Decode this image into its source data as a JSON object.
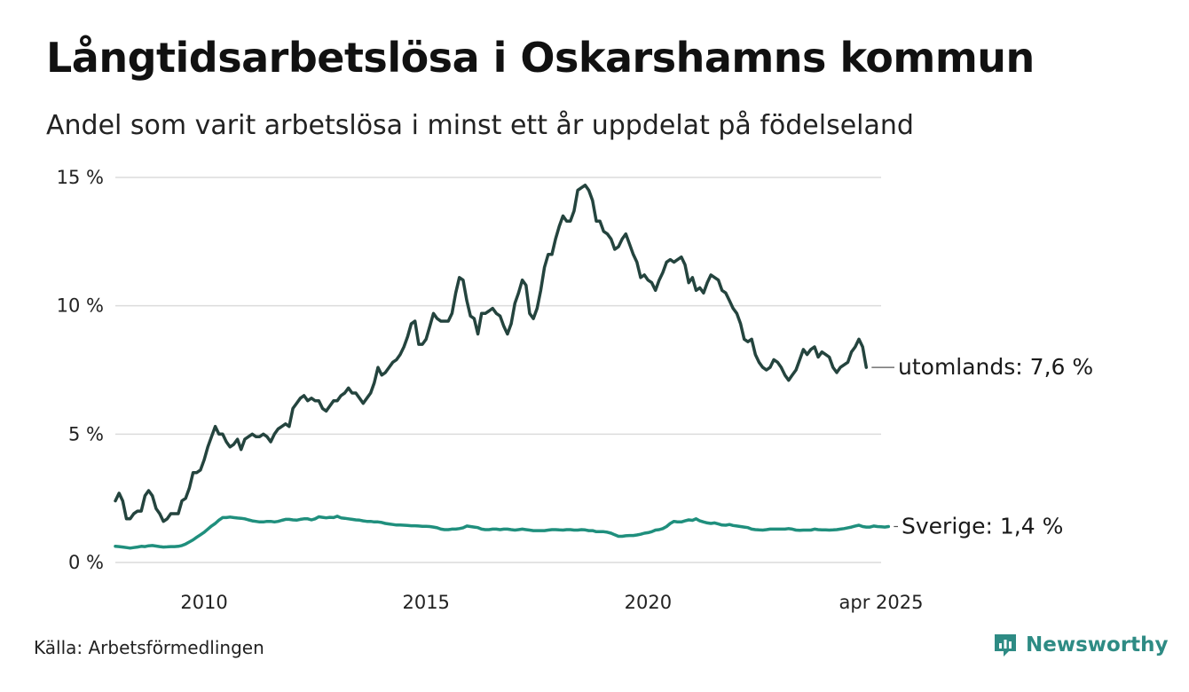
{
  "header": {
    "title": "Långtidsarbetslösa i Oskarshamns kommun",
    "subtitle": "Andel som varit arbetslösa i minst ett år uppdelat på födelseland"
  },
  "footer": {
    "source": "Källa: Arbetsförmedlingen",
    "brand": "Newsworthy",
    "brand_icon": "newsworthy-logo-icon",
    "brand_color": "#2e8b84"
  },
  "chart_data": {
    "type": "line",
    "title": "Långtidsarbetslösa i Oskarshamns kommun",
    "subtitle": "Andel som varit arbetslösa i minst ett år uppdelat på födelseland",
    "xlabel": "",
    "ylabel": "",
    "x_start": "2008-01",
    "x_end": "2025-04",
    "x_step": "month",
    "xlim": [
      "2008-01",
      "2025-04"
    ],
    "ylim": [
      0,
      15
    ],
    "yticks": [
      0,
      5,
      10,
      15
    ],
    "ytick_labels": [
      "0 %",
      "5 %",
      "10 %",
      "15 %"
    ],
    "xticks": [
      "2010-01",
      "2015-01",
      "2020-01",
      "2025-04"
    ],
    "xtick_labels": [
      "2010",
      "2015",
      "2020",
      "apr 2025"
    ],
    "grid": "horizontal",
    "legend": "end-of-line labels",
    "series": [
      {
        "name": "utomlands",
        "end_label": "utomlands: 7,6 %",
        "color": "#24443e",
        "values": [
          2.4,
          2.7,
          2.4,
          1.7,
          1.7,
          1.9,
          2.0,
          2.0,
          2.6,
          2.8,
          2.6,
          2.1,
          1.9,
          1.6,
          1.7,
          1.9,
          1.9,
          1.9,
          2.4,
          2.5,
          2.9,
          3.5,
          3.5,
          3.6,
          4.0,
          4.5,
          4.9,
          5.3,
          5.0,
          5.0,
          4.7,
          4.5,
          4.6,
          4.8,
          4.4,
          4.8,
          4.9,
          5.0,
          4.9,
          4.9,
          5.0,
          4.9,
          4.7,
          5.0,
          5.2,
          5.3,
          5.4,
          5.3,
          6.0,
          6.2,
          6.4,
          6.5,
          6.3,
          6.4,
          6.3,
          6.3,
          6.0,
          5.9,
          6.1,
          6.3,
          6.3,
          6.5,
          6.6,
          6.8,
          6.6,
          6.6,
          6.4,
          6.2,
          6.4,
          6.6,
          7.0,
          7.6,
          7.3,
          7.4,
          7.6,
          7.8,
          7.9,
          8.1,
          8.4,
          8.8,
          9.3,
          9.4,
          8.5,
          8.5,
          8.7,
          9.2,
          9.7,
          9.5,
          9.4,
          9.4,
          9.4,
          9.7,
          10.5,
          11.1,
          11.0,
          10.2,
          9.6,
          9.5,
          8.9,
          9.7,
          9.7,
          9.8,
          9.9,
          9.7,
          9.6,
          9.2,
          8.9,
          9.3,
          10.1,
          10.5,
          11.0,
          10.8,
          9.7,
          9.5,
          9.9,
          10.6,
          11.5,
          12.0,
          12.0,
          12.6,
          13.1,
          13.5,
          13.3,
          13.3,
          13.7,
          14.5,
          14.6,
          14.7,
          14.5,
          14.1,
          13.3,
          13.3,
          12.9,
          12.8,
          12.6,
          12.2,
          12.3,
          12.6,
          12.8,
          12.4,
          12.0,
          11.7,
          11.1,
          11.2,
          11.0,
          10.9,
          10.6,
          11.0,
          11.3,
          11.7,
          11.8,
          11.7,
          11.8,
          11.9,
          11.6,
          10.9,
          11.1,
          10.6,
          10.7,
          10.5,
          10.9,
          11.2,
          11.1,
          11.0,
          10.6,
          10.5,
          10.2,
          9.9,
          9.7,
          9.3,
          8.7,
          8.6,
          8.7,
          8.1,
          7.8,
          7.6,
          7.5,
          7.6,
          7.9,
          7.8,
          7.6,
          7.3,
          7.1,
          7.3,
          7.5,
          7.9,
          8.3,
          8.1,
          8.3,
          8.4,
          8.0,
          8.2,
          8.1,
          8.0,
          7.6,
          7.4,
          7.6,
          7.7,
          7.8,
          8.2,
          8.4,
          8.7,
          8.4,
          7.6
        ]
      },
      {
        "name": "Sverige",
        "end_label": "Sverige: 1,4 %",
        "color": "#1f8f7d",
        "values": [
          0.63,
          0.62,
          0.6,
          0.58,
          0.56,
          0.58,
          0.6,
          0.63,
          0.62,
          0.65,
          0.66,
          0.64,
          0.62,
          0.6,
          0.61,
          0.62,
          0.62,
          0.63,
          0.66,
          0.72,
          0.8,
          0.88,
          0.98,
          1.08,
          1.18,
          1.3,
          1.42,
          1.52,
          1.65,
          1.75,
          1.75,
          1.77,
          1.75,
          1.73,
          1.72,
          1.7,
          1.66,
          1.62,
          1.6,
          1.58,
          1.58,
          1.6,
          1.6,
          1.58,
          1.6,
          1.64,
          1.68,
          1.68,
          1.66,
          1.65,
          1.68,
          1.7,
          1.7,
          1.66,
          1.7,
          1.78,
          1.76,
          1.74,
          1.76,
          1.75,
          1.8,
          1.74,
          1.72,
          1.7,
          1.68,
          1.66,
          1.65,
          1.62,
          1.6,
          1.6,
          1.58,
          1.58,
          1.56,
          1.52,
          1.5,
          1.48,
          1.46,
          1.46,
          1.45,
          1.44,
          1.43,
          1.43,
          1.42,
          1.41,
          1.41,
          1.4,
          1.38,
          1.35,
          1.3,
          1.28,
          1.28,
          1.3,
          1.3,
          1.32,
          1.35,
          1.42,
          1.4,
          1.38,
          1.36,
          1.3,
          1.28,
          1.28,
          1.3,
          1.3,
          1.28,
          1.3,
          1.3,
          1.28,
          1.26,
          1.28,
          1.3,
          1.28,
          1.26,
          1.24,
          1.24,
          1.24,
          1.24,
          1.26,
          1.28,
          1.28,
          1.27,
          1.26,
          1.28,
          1.28,
          1.26,
          1.26,
          1.28,
          1.27,
          1.24,
          1.24,
          1.2,
          1.2,
          1.2,
          1.18,
          1.14,
          1.08,
          1.02,
          1.02,
          1.04,
          1.05,
          1.05,
          1.07,
          1.1,
          1.14,
          1.16,
          1.2,
          1.26,
          1.28,
          1.32,
          1.4,
          1.52,
          1.6,
          1.58,
          1.58,
          1.62,
          1.66,
          1.64,
          1.7,
          1.62,
          1.58,
          1.54,
          1.52,
          1.54,
          1.5,
          1.46,
          1.45,
          1.48,
          1.44,
          1.42,
          1.4,
          1.38,
          1.36,
          1.3,
          1.28,
          1.27,
          1.26,
          1.28,
          1.3,
          1.3,
          1.3,
          1.3,
          1.3,
          1.32,
          1.3,
          1.26,
          1.25,
          1.26,
          1.26,
          1.26,
          1.3,
          1.28,
          1.27,
          1.27,
          1.26,
          1.27,
          1.28,
          1.3,
          1.32,
          1.35,
          1.38,
          1.42,
          1.45,
          1.4,
          1.38,
          1.38,
          1.42,
          1.4,
          1.39,
          1.38,
          1.4
        ]
      }
    ]
  }
}
